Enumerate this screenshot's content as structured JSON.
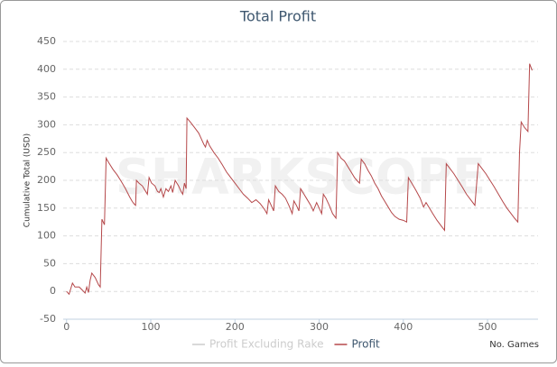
{
  "chart_data": {
    "type": "line",
    "title": "Total Profit",
    "y_label": "Cumulative Total (USD)",
    "x_label": "No. Games",
    "watermark": "SHARKSCOPE",
    "x": [
      0,
      3,
      7,
      10,
      15,
      19,
      22,
      24,
      26,
      28,
      30,
      34,
      38,
      40,
      42,
      45,
      47,
      50,
      55,
      60,
      65,
      70,
      75,
      78,
      80,
      82,
      83,
      86,
      90,
      94,
      96,
      98,
      101,
      105,
      108,
      110,
      112,
      115,
      118,
      121,
      124,
      126,
      129,
      133,
      136,
      138,
      140,
      142,
      143,
      147,
      152,
      157,
      160,
      163,
      165,
      167,
      170,
      175,
      180,
      185,
      190,
      195,
      200,
      205,
      210,
      215,
      220,
      225,
      230,
      235,
      238,
      240,
      243,
      246,
      248,
      252,
      256,
      260,
      264,
      268,
      270,
      273,
      276,
      278,
      282,
      286,
      290,
      293,
      297,
      300,
      303,
      305,
      308,
      312,
      316,
      320,
      322,
      326,
      330,
      334,
      338,
      342,
      346,
      348,
      350,
      354,
      358,
      362,
      366,
      370,
      374,
      378,
      382,
      386,
      390,
      395,
      400,
      404,
      406,
      410,
      415,
      420,
      424,
      427,
      431,
      435,
      440,
      445,
      449,
      451,
      455,
      460,
      465,
      470,
      475,
      480,
      485,
      489,
      493,
      498,
      503,
      508,
      513,
      518,
      523,
      528,
      532,
      536,
      538,
      540,
      544,
      548,
      550,
      553
    ],
    "series": [
      {
        "name": "Profit Excluding Rake",
        "color": "#cccccc",
        "visible": false
      },
      {
        "name": "Profit",
        "color": "#b5484a",
        "visible": true,
        "values": [
          0,
          -5,
          15,
          8,
          8,
          2,
          -3,
          8,
          -2,
          20,
          33,
          25,
          12,
          8,
          130,
          120,
          240,
          232,
          220,
          210,
          198,
          185,
          170,
          162,
          158,
          155,
          200,
          195,
          190,
          180,
          175,
          205,
          195,
          190,
          180,
          178,
          185,
          170,
          185,
          180,
          190,
          178,
          200,
          190,
          180,
          175,
          195,
          185,
          312,
          305,
          295,
          285,
          275,
          265,
          260,
          272,
          262,
          250,
          240,
          228,
          215,
          205,
          195,
          185,
          175,
          168,
          160,
          165,
          158,
          148,
          140,
          165,
          155,
          145,
          190,
          180,
          175,
          168,
          155,
          140,
          163,
          155,
          145,
          185,
          175,
          165,
          155,
          145,
          160,
          150,
          140,
          175,
          168,
          155,
          140,
          132,
          250,
          240,
          235,
          225,
          215,
          205,
          198,
          195,
          238,
          230,
          218,
          208,
          195,
          185,
          172,
          162,
          152,
          142,
          135,
          130,
          128,
          125,
          205,
          195,
          182,
          168,
          152,
          160,
          150,
          140,
          128,
          118,
          110,
          230,
          222,
          212,
          200,
          188,
          175,
          165,
          155,
          230,
          222,
          212,
          200,
          188,
          175,
          162,
          150,
          140,
          132,
          125,
          250,
          305,
          295,
          288,
          410,
          398
        ]
      }
    ],
    "xlim": [
      -4,
      560
    ],
    "xticks": [
      0,
      100,
      200,
      300,
      400,
      500
    ],
    "ylim": [
      -50,
      450
    ],
    "yticks": [
      -50,
      0,
      50,
      100,
      150,
      200,
      250,
      300,
      350,
      400,
      450
    ],
    "grid": true,
    "legend": "bottom"
  }
}
